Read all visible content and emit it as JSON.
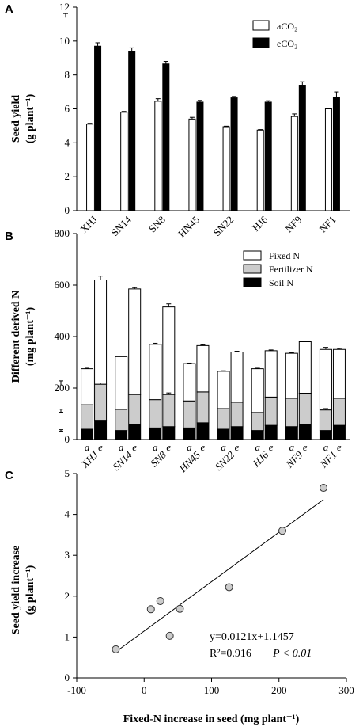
{
  "chart_data": [
    {
      "type": "bar",
      "panel_label": "A",
      "ylabel_line1": "Seed yield",
      "ylabel_line2": "(g plant⁻¹)",
      "ylim": [
        0,
        12
      ],
      "yticks": [
        0,
        2,
        4,
        6,
        8,
        10,
        12
      ],
      "categories": [
        "XHJ",
        "SN14",
        "SN8",
        "HN45",
        "SN22",
        "HJ6",
        "NF9",
        "NF1"
      ],
      "series": [
        {
          "name": "aCO₂",
          "values": [
            5.1,
            5.8,
            6.45,
            5.4,
            4.95,
            4.75,
            5.55,
            6.0
          ],
          "errors": [
            0.05,
            0.05,
            0.15,
            0.1,
            0.03,
            0.03,
            0.15,
            0.03
          ],
          "color": "#ffffff"
        },
        {
          "name": "eCO₂",
          "values": [
            9.7,
            9.4,
            8.65,
            6.4,
            6.65,
            6.4,
            7.4,
            6.7
          ],
          "errors": [
            0.2,
            0.2,
            0.15,
            0.1,
            0.08,
            0.08,
            0.2,
            0.3
          ],
          "color": "#000000"
        }
      ],
      "lsd_marker": {
        "value": 11.5,
        "error": 0.12
      },
      "legend_position": "top-right",
      "grid": false
    },
    {
      "type": "bar",
      "stacked": true,
      "panel_label": "B",
      "ylabel_line1": "Different derived N",
      "ylabel_line2": "(mg plant⁻¹)",
      "ylim": [
        0,
        800
      ],
      "yticks": [
        0,
        200,
        400,
        600,
        800
      ],
      "categories": [
        "XHJ",
        "SN14",
        "SN8",
        "HN45",
        "SN22",
        "HJ6",
        "NF9",
        "NF1"
      ],
      "bar_labels": [
        "a",
        "e"
      ],
      "series": [
        {
          "name": "Soil N",
          "color": "#000000",
          "a": [
            40,
            35,
            45,
            45,
            40,
            35,
            50,
            35
          ],
          "e": [
            75,
            60,
            50,
            65,
            50,
            55,
            60,
            55
          ]
        },
        {
          "name": "Fertilizer N",
          "color": "#cccccc",
          "a": [
            95,
            82,
            110,
            105,
            80,
            70,
            110,
            80
          ],
          "e": [
            140,
            115,
            125,
            120,
            95,
            110,
            120,
            105
          ]
        },
        {
          "name": "Fixed N",
          "color": "#ffffff",
          "a": [
            140,
            205,
            215,
            145,
            145,
            170,
            175,
            235
          ],
          "e": [
            405,
            410,
            340,
            180,
            195,
            180,
            200,
            190
          ]
        }
      ],
      "top_errors": {
        "a": [
          2,
          2,
          4,
          2,
          2,
          2,
          2,
          8
        ],
        "e": [
          15,
          5,
          12,
          3,
          3,
          3,
          3,
          4
        ]
      },
      "fert_errors": {
        "a": [
          0,
          0,
          0,
          0,
          0,
          0,
          0,
          5
        ],
        "e": [
          5,
          0,
          6,
          0,
          0,
          0,
          0,
          0
        ]
      },
      "lsd_markers": [
        {
          "value": 218,
          "error": 10
        },
        {
          "value": 112,
          "error": 6
        },
        {
          "value": 35,
          "error": 3
        }
      ],
      "legend_order": [
        "Fixed N",
        "Fertilizer N",
        "Soil N"
      ],
      "legend_position": "top-right",
      "grid": false
    },
    {
      "type": "scatter",
      "panel_label": "C",
      "xlabel": "Fixed-N increase in seed (mg plant⁻¹)",
      "ylabel_line1": "Seed yield increase",
      "ylabel_line2": "(g plant⁻¹)",
      "xlim": [
        -100,
        300
      ],
      "ylim": [
        0,
        5
      ],
      "xticks": [
        -100,
        0,
        100,
        200,
        300
      ],
      "yticks": [
        0,
        1,
        2,
        3,
        4,
        5
      ],
      "points": [
        {
          "x": -42,
          "y": 0.7
        },
        {
          "x": 10,
          "y": 1.68
        },
        {
          "x": 24,
          "y": 1.88
        },
        {
          "x": 38,
          "y": 1.03
        },
        {
          "x": 53,
          "y": 1.69
        },
        {
          "x": 126,
          "y": 2.22
        },
        {
          "x": 205,
          "y": 3.6
        },
        {
          "x": 266,
          "y": 4.65
        }
      ],
      "fit": {
        "slope": 0.0121,
        "intercept": 1.1457,
        "x_range": [
          -42,
          266
        ]
      },
      "equation_text": "y=0.0121x+1.1457",
      "r2_text": "R²=0.916",
      "p_text": "P < 0.01",
      "grid": false
    }
  ]
}
